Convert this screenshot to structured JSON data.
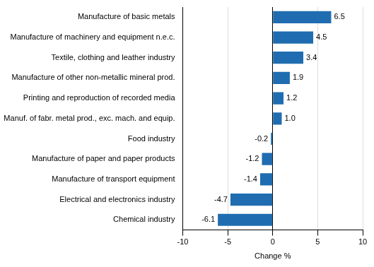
{
  "chart_data": {
    "type": "bar",
    "orientation": "horizontal",
    "categories": [
      "Manufacture of basic metals",
      "Manufacture of machinery and equipment n.e.c.",
      "Textile, clothing and leather industry",
      "Manufacture of other non-metallic mineral prod.",
      "Printing and reproduction of recorded media",
      "Manuf. of fabr. metal prod., exc. mach. and equip.",
      "Food industry",
      "Manufacture of paper and paper products",
      "Manufacture of transport equipment",
      "Electrical and electronics industry",
      "Chemical industry"
    ],
    "values": [
      6.5,
      4.5,
      3.4,
      1.9,
      1.2,
      1.0,
      -0.2,
      -1.2,
      -1.4,
      -4.7,
      -6.1
    ],
    "value_labels": [
      "6.5",
      "4.5",
      "3.4",
      "1.9",
      "1.2",
      "1.0",
      "-0.2",
      "-1.2",
      "-1.4",
      "-4.7",
      "-6.1"
    ],
    "color": "#1f6db0",
    "x_label": "Change %",
    "xlim": [
      -10,
      10
    ],
    "xticks": [
      -10,
      -5,
      0,
      5,
      10
    ],
    "grid": true,
    "data_labels": true
  }
}
